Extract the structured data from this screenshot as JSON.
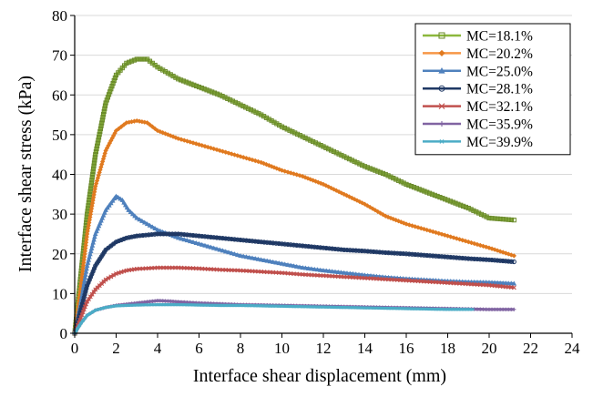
{
  "chart_data": {
    "type": "line",
    "title": "",
    "xlabel": "Interface shear displacement (mm)",
    "ylabel": "Interface shear stress (kPa)",
    "xlim": [
      0,
      24
    ],
    "ylim": [
      0,
      80
    ],
    "xticks": [
      "0",
      "2",
      "4",
      "6",
      "8",
      "10",
      "12",
      "14",
      "16",
      "18",
      "20",
      "22",
      "24"
    ],
    "yticks": [
      "0",
      "10",
      "20",
      "30",
      "40",
      "50",
      "60",
      "70",
      "80"
    ],
    "grid": "horizontal",
    "legend_position": "top-right",
    "series": [
      {
        "name": "MC=18.1%",
        "color": "#8cb83c",
        "marker_color": "#6a8a2a",
        "marker": "square",
        "x": [
          0,
          0.3,
          0.6,
          1.0,
          1.5,
          2.0,
          2.5,
          3.0,
          3.5,
          4.0,
          5.0,
          6.0,
          7.0,
          8.0,
          9.0,
          10.0,
          11.0,
          12.0,
          13.0,
          14.0,
          15.0,
          16.0,
          17.0,
          18.0,
          19.0,
          20.0,
          21.2
        ],
        "y": [
          0,
          15,
          30,
          45,
          58,
          65,
          68,
          69,
          69,
          67,
          64,
          62,
          60,
          57.5,
          55,
          52,
          49.5,
          47,
          44.5,
          42,
          40,
          37.5,
          35.5,
          33.5,
          31.5,
          29,
          28.5
        ]
      },
      {
        "name": "MC=20.2%",
        "color": "#f79646",
        "marker_color": "#e07a20",
        "marker": "diamond",
        "x": [
          0,
          0.3,
          0.6,
          1.0,
          1.5,
          2.0,
          2.5,
          3.0,
          3.5,
          4.0,
          5.0,
          6.0,
          7.0,
          8.0,
          9.0,
          10.0,
          11.0,
          12.0,
          13.0,
          14.0,
          15.0,
          16.0,
          17.0,
          18.0,
          19.0,
          20.0,
          21.2
        ],
        "y": [
          0,
          12,
          25,
          37,
          46,
          51,
          53,
          53.5,
          53,
          51,
          49,
          47.5,
          46,
          44.5,
          43,
          41,
          39.5,
          37.5,
          35,
          32.5,
          29.5,
          27.5,
          26,
          24.5,
          23,
          21.5,
          19.5
        ]
      },
      {
        "name": "MC=25.0%",
        "color": "#4f81bd",
        "marker_color": "#4f81bd",
        "marker": "triangle",
        "x": [
          0,
          0.3,
          0.6,
          1.0,
          1.5,
          2.0,
          2.3,
          2.6,
          3.0,
          3.5,
          4.0,
          5.0,
          6.0,
          7.0,
          8.0,
          9.0,
          10.0,
          11.0,
          12.0,
          13.0,
          14.0,
          15.0,
          16.0,
          17.0,
          18.0,
          19.0,
          20.0,
          21.2
        ],
        "y": [
          0,
          8,
          17,
          25,
          31,
          34.5,
          33.5,
          31,
          29,
          27.5,
          26,
          24,
          22.5,
          21,
          19.5,
          18.5,
          17.5,
          16.5,
          15.8,
          15.2,
          14.6,
          14.1,
          13.7,
          13.4,
          13.1,
          12.9,
          12.8,
          12.5
        ]
      },
      {
        "name": "MC=28.1%",
        "color": "#1f3864",
        "marker_color": "#1f3864",
        "marker": "circle",
        "x": [
          0,
          0.3,
          0.6,
          1.0,
          1.5,
          2.0,
          2.5,
          3.0,
          4.0,
          5.0,
          6.0,
          7.0,
          8.0,
          9.0,
          10.0,
          11.0,
          12.0,
          13.0,
          14.0,
          15.0,
          16.0,
          17.0,
          18.0,
          19.0,
          20.0,
          21.2
        ],
        "y": [
          0,
          6,
          12,
          17,
          21,
          23,
          24,
          24.5,
          25,
          25,
          24.5,
          24,
          23.5,
          23,
          22.5,
          22,
          21.5,
          21,
          20.7,
          20.3,
          20,
          19.6,
          19.2,
          18.8,
          18.5,
          18
        ]
      },
      {
        "name": "MC=32.1%",
        "color": "#c0504d",
        "marker_color": "#c0504d",
        "marker": "x",
        "x": [
          0,
          0.3,
          0.6,
          1.0,
          1.5,
          2.0,
          2.5,
          3.0,
          4.0,
          5.0,
          6.0,
          7.0,
          8.0,
          9.0,
          10.0,
          11.0,
          12.0,
          13.0,
          14.0,
          15.0,
          16.0,
          17.0,
          18.0,
          19.0,
          20.0,
          21.2
        ],
        "y": [
          0,
          4,
          8,
          11,
          13.5,
          15,
          15.8,
          16.2,
          16.5,
          16.5,
          16.3,
          16,
          15.8,
          15.5,
          15.2,
          14.8,
          14.5,
          14.2,
          13.9,
          13.6,
          13.3,
          13,
          12.7,
          12.4,
          12.1,
          11.5
        ]
      },
      {
        "name": "MC=35.9%",
        "color": "#8064a2",
        "marker_color": "#8064a2",
        "marker": "plus",
        "x": [
          0,
          0.3,
          0.6,
          1.0,
          1.5,
          2.0,
          2.5,
          3.0,
          3.5,
          4.0,
          4.5,
          5.0,
          6.0,
          7.0,
          8.0,
          9.0,
          10.0,
          11.0,
          12.0,
          13.0,
          14.0,
          15.0,
          16.0,
          17.0,
          18.0,
          19.0,
          20.0,
          21.2
        ],
        "y": [
          0,
          2.5,
          4.5,
          5.8,
          6.5,
          7,
          7.3,
          7.6,
          7.9,
          8.2,
          8.1,
          7.9,
          7.6,
          7.4,
          7.2,
          7.1,
          7,
          6.9,
          6.8,
          6.7,
          6.6,
          6.5,
          6.4,
          6.3,
          6.2,
          6.1,
          6,
          6
        ]
      },
      {
        "name": "MC=39.9%",
        "color": "#4bacc6",
        "marker_color": "#4bacc6",
        "marker": "star",
        "x": [
          0,
          0.3,
          0.6,
          1.0,
          1.5,
          2.0,
          3.0,
          4.0,
          5.0,
          6.0,
          7.0,
          8.0,
          9.0,
          10.0,
          11.0,
          12.0,
          13.0,
          14.0,
          15.0,
          16.0,
          17.0,
          18.0,
          19.2
        ],
        "y": [
          0,
          2.5,
          4.5,
          5.8,
          6.5,
          6.9,
          7.1,
          7.2,
          7.2,
          7.1,
          7,
          7,
          6.9,
          6.8,
          6.7,
          6.6,
          6.5,
          6.4,
          6.3,
          6.2,
          6.1,
          6,
          6
        ]
      }
    ]
  }
}
